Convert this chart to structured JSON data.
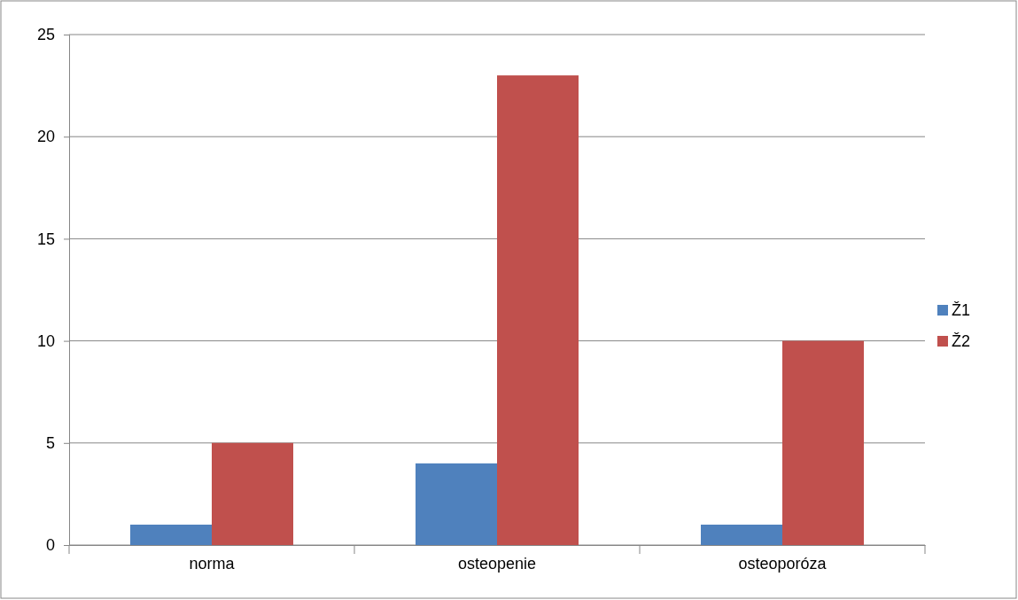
{
  "chart_data": {
    "type": "bar",
    "categories": [
      "norma",
      "osteopenie",
      "osteoporóza"
    ],
    "series": [
      {
        "name": "Ž1",
        "color": "#4f81bd",
        "values": [
          1,
          4,
          1
        ]
      },
      {
        "name": "Ž2",
        "color": "#c0504d",
        "values": [
          5,
          23,
          10
        ]
      }
    ],
    "ylim": [
      0,
      25
    ],
    "yticks": [
      0,
      5,
      10,
      15,
      20,
      25
    ],
    "grid": "y",
    "legend": "right"
  }
}
